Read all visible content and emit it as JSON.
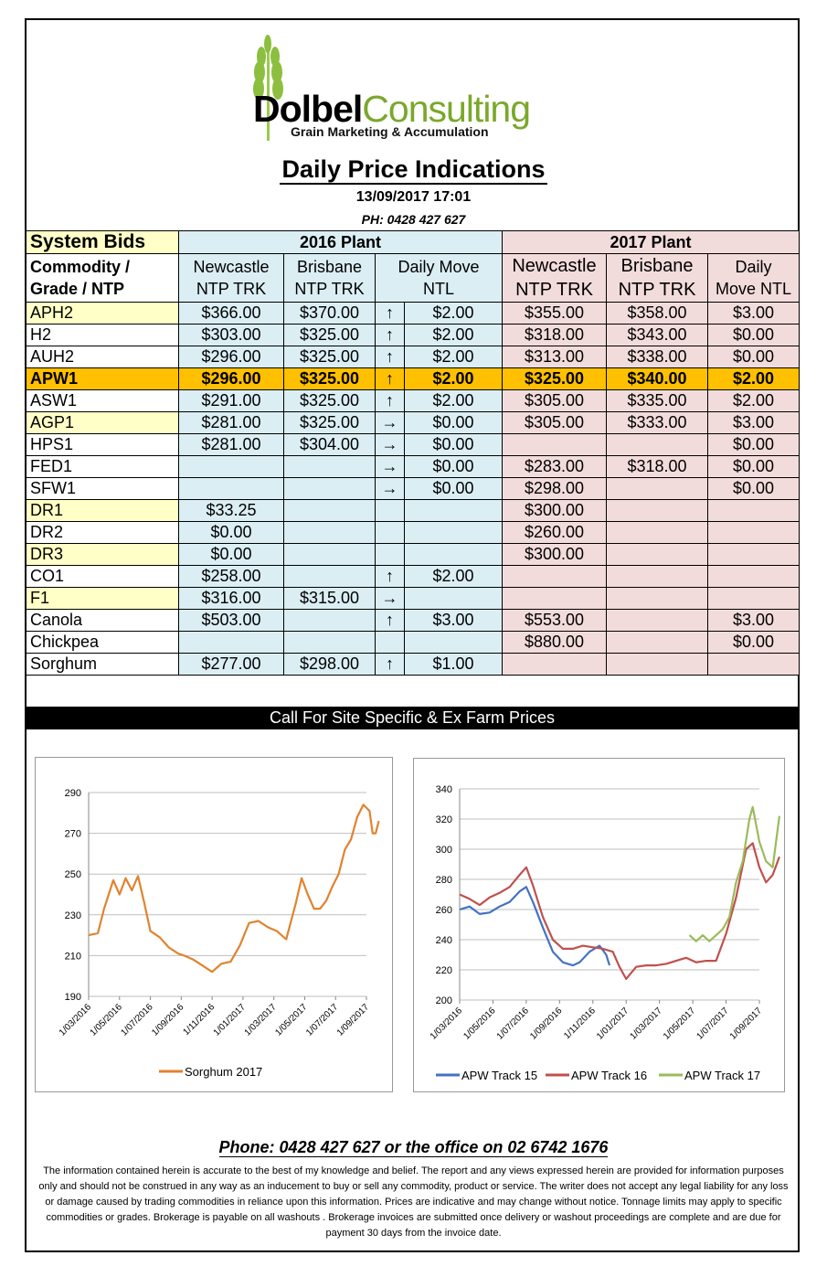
{
  "logo": {
    "brand_bold": "Dolbel",
    "brand_light": "Consulting",
    "tagline": "Grain Marketing & Accumulation"
  },
  "header": {
    "title": "Daily Price Indications",
    "datetime": "13/09/2017 17:01",
    "phone": "PH: 0428 427 627"
  },
  "table": {
    "system_bids": "System Bids",
    "plant_2016": "2016 Plant",
    "plant_2017": "2017 Plant",
    "col_commodity": [
      "Commodity /",
      "Grade / NTP"
    ],
    "col_newcastle_16": [
      "Newcastle",
      "NTP TRK"
    ],
    "col_brisbane_16": [
      "Brisbane",
      "NTP TRK"
    ],
    "col_daily_16": [
      "Daily  Move",
      "NTL"
    ],
    "col_newcastle_17": [
      "Newcastle",
      "NTP TRK"
    ],
    "col_brisbane_17": [
      "Brisbane",
      "NTP TRK"
    ],
    "col_daily_17": [
      "Daily",
      "Move NTL"
    ],
    "rows": [
      {
        "grade": "APH2",
        "hl": true,
        "n16": "$366.00",
        "b16": "$370.00",
        "arr": "↑",
        "d16": "$2.00",
        "n17": "$355.00",
        "b17": "$358.00",
        "d17": "$3.00"
      },
      {
        "grade": "H2",
        "hl": false,
        "n16": "$303.00",
        "b16": "$325.00",
        "arr": "↑",
        "d16": "$2.00",
        "n17": "$318.00",
        "b17": "$343.00",
        "d17": "$0.00"
      },
      {
        "grade": "AUH2",
        "hl": false,
        "n16": "$296.00",
        "b16": "$325.00",
        "arr": "↑",
        "d16": "$2.00",
        "n17": "$313.00",
        "b17": "$338.00",
        "d17": "$0.00"
      },
      {
        "grade": "APW1",
        "hl": false,
        "apw": true,
        "n16": "$296.00",
        "b16": "$325.00",
        "arr": "↑",
        "d16": "$2.00",
        "n17": "$325.00",
        "b17": "$340.00",
        "d17": "$2.00"
      },
      {
        "grade": "ASW1",
        "hl": false,
        "n16": "$291.00",
        "b16": "$325.00",
        "arr": "↑",
        "d16": "$2.00",
        "n17": "$305.00",
        "b17": "$335.00",
        "d17": "$2.00"
      },
      {
        "grade": "AGP1",
        "hl": true,
        "n16": "$281.00",
        "b16": "$325.00",
        "arr": "→",
        "d16": "$0.00",
        "n17": "$305.00",
        "b17": "$333.00",
        "d17": "$3.00"
      },
      {
        "grade": "HPS1",
        "hl": false,
        "n16": "$281.00",
        "b16": "$304.00",
        "arr": "→",
        "d16": "$0.00",
        "n17": "",
        "b17": "",
        "d17": "$0.00"
      },
      {
        "grade": "FED1",
        "hl": false,
        "n16": "",
        "b16": "",
        "arr": "→",
        "d16": "$0.00",
        "n17": "$283.00",
        "b17": "$318.00",
        "d17": "$0.00"
      },
      {
        "grade": "SFW1",
        "hl": false,
        "n16": "",
        "b16": "",
        "arr": "→",
        "d16": "$0.00",
        "n17": "$298.00",
        "b17": "",
        "d17": "$0.00"
      },
      {
        "grade": "DR1",
        "hl": true,
        "n16": "$33.25",
        "b16": "",
        "arr": "",
        "d16": "",
        "n17": "$300.00",
        "b17": "",
        "d17": ""
      },
      {
        "grade": "DR2",
        "hl": false,
        "n16": "$0.00",
        "b16": "",
        "arr": "",
        "d16": "",
        "n17": "$260.00",
        "b17": "",
        "d17": ""
      },
      {
        "grade": "DR3",
        "hl": true,
        "n16": "$0.00",
        "b16": "",
        "arr": "",
        "d16": "",
        "n17": "$300.00",
        "b17": "",
        "d17": ""
      },
      {
        "grade": "CO1",
        "hl": false,
        "n16": "$258.00",
        "b16": "",
        "arr": "↑",
        "d16": "$2.00",
        "n17": "",
        "b17": "",
        "d17": ""
      },
      {
        "grade": "F1",
        "hl": true,
        "n16": "$316.00",
        "b16": "$315.00",
        "arr": "→",
        "d16": "",
        "n17": "",
        "b17": "",
        "d17": ""
      },
      {
        "grade": "Canola",
        "hl": false,
        "n16": "$503.00",
        "b16": "",
        "arr": "↑",
        "d16": "$3.00",
        "n17": "$553.00",
        "b17": "",
        "d17": "$3.00"
      },
      {
        "grade": "Chickpea",
        "hl": false,
        "n16": "",
        "b16": "",
        "arr": "",
        "d16": "",
        "n17": "$880.00",
        "b17": "",
        "d17": "$0.00"
      },
      {
        "grade": "Sorghum",
        "hl": false,
        "n16": "$277.00",
        "b16": "$298.00",
        "arr": "↑",
        "d16": "$1.00",
        "n17": "",
        "b17": "",
        "d17": ""
      }
    ]
  },
  "callbar": "Call For Site Specific & Ex Farm Prices",
  "chart_data": [
    {
      "type": "line",
      "yticks": [
        190,
        210,
        230,
        250,
        270,
        290
      ],
      "ylim": [
        190,
        290
      ],
      "xticks": [
        "1/03/2016",
        "1/05/2016",
        "1/07/2016",
        "1/09/2016",
        "1/11/2016",
        "1/01/2017",
        "1/03/2017",
        "1/05/2017",
        "1/07/2017",
        "1/09/2017"
      ],
      "series": [
        {
          "name": "Sorghum 2017",
          "color": "#e0832f",
          "values": [
            [
              0.0,
              220
            ],
            [
              0.3,
              221
            ],
            [
              0.5,
              233
            ],
            [
              0.8,
              247
            ],
            [
              1.0,
              240
            ],
            [
              1.2,
              248
            ],
            [
              1.4,
              242
            ],
            [
              1.6,
              249
            ],
            [
              1.8,
              236
            ],
            [
              2.0,
              222
            ],
            [
              2.3,
              219
            ],
            [
              2.6,
              214
            ],
            [
              2.9,
              211
            ],
            [
              3.1,
              210
            ],
            [
              3.4,
              208
            ],
            [
              3.7,
              205
            ],
            [
              4.0,
              202
            ],
            [
              4.3,
              206
            ],
            [
              4.6,
              207
            ],
            [
              4.9,
              215
            ],
            [
              5.2,
              226
            ],
            [
              5.5,
              227
            ],
            [
              5.8,
              224
            ],
            [
              6.1,
              222
            ],
            [
              6.4,
              218
            ],
            [
              6.7,
              235
            ],
            [
              6.9,
              248
            ],
            [
              7.1,
              240
            ],
            [
              7.3,
              233
            ],
            [
              7.5,
              233
            ],
            [
              7.7,
              237
            ],
            [
              7.9,
              244
            ],
            [
              8.1,
              250
            ],
            [
              8.3,
              262
            ],
            [
              8.5,
              267
            ],
            [
              8.7,
              278
            ],
            [
              8.9,
              284
            ],
            [
              9.1,
              281
            ],
            [
              9.2,
              270
            ],
            [
              9.3,
              270
            ],
            [
              9.4,
              276
            ]
          ]
        }
      ]
    },
    {
      "type": "line",
      "yticks": [
        200,
        220,
        240,
        260,
        280,
        300,
        320,
        340
      ],
      "ylim": [
        200,
        340
      ],
      "xticks": [
        "1/03/2016",
        "1/05/2016",
        "1/07/2016",
        "1/09/2016",
        "1/11/2016",
        "1/01/2017",
        "1/03/2017",
        "1/05/2017",
        "1/07/2017",
        "1/09/2017"
      ],
      "series": [
        {
          "name": "APW Track 15",
          "color": "#4472c4",
          "values": [
            [
              0.0,
              260
            ],
            [
              0.3,
              262
            ],
            [
              0.6,
              257
            ],
            [
              0.9,
              258
            ],
            [
              1.2,
              262
            ],
            [
              1.5,
              265
            ],
            [
              1.8,
              272
            ],
            [
              2.0,
              275
            ],
            [
              2.2,
              265
            ],
            [
              2.5,
              248
            ],
            [
              2.8,
              232
            ],
            [
              3.1,
              225
            ],
            [
              3.4,
              223
            ],
            [
              3.6,
              225
            ],
            [
              3.9,
              232
            ],
            [
              4.2,
              236
            ],
            [
              4.4,
              230
            ],
            [
              4.5,
              223
            ]
          ]
        },
        {
          "name": "APW Track 16",
          "color": "#c0504d",
          "values": [
            [
              0.0,
              270
            ],
            [
              0.3,
              267
            ],
            [
              0.6,
              263
            ],
            [
              0.9,
              268
            ],
            [
              1.2,
              271
            ],
            [
              1.5,
              275
            ],
            [
              1.8,
              283
            ],
            [
              2.0,
              288
            ],
            [
              2.2,
              276
            ],
            [
              2.5,
              255
            ],
            [
              2.8,
              240
            ],
            [
              3.1,
              234
            ],
            [
              3.4,
              234
            ],
            [
              3.7,
              236
            ],
            [
              4.0,
              235
            ],
            [
              4.3,
              234
            ],
            [
              4.6,
              232
            ],
            [
              4.8,
              222
            ],
            [
              5.0,
              214
            ],
            [
              5.3,
              222
            ],
            [
              5.6,
              223
            ],
            [
              5.9,
              223
            ],
            [
              6.2,
              224
            ],
            [
              6.5,
              226
            ],
            [
              6.8,
              228
            ],
            [
              7.1,
              225
            ],
            [
              7.4,
              226
            ],
            [
              7.7,
              226
            ],
            [
              8.0,
              244
            ],
            [
              8.3,
              268
            ],
            [
              8.6,
              300
            ],
            [
              8.8,
              304
            ],
            [
              9.0,
              288
            ],
            [
              9.2,
              278
            ],
            [
              9.4,
              283
            ],
            [
              9.6,
              295
            ]
          ]
        },
        {
          "name": "APW Track 17",
          "color": "#9bbb59",
          "values": [
            [
              6.9,
              243
            ],
            [
              7.1,
              239
            ],
            [
              7.3,
              243
            ],
            [
              7.5,
              239
            ],
            [
              7.7,
              243
            ],
            [
              7.9,
              247
            ],
            [
              8.1,
              255
            ],
            [
              8.3,
              278
            ],
            [
              8.5,
              292
            ],
            [
              8.7,
              320
            ],
            [
              8.8,
              328
            ],
            [
              9.0,
              305
            ],
            [
              9.2,
              292
            ],
            [
              9.4,
              288
            ],
            [
              9.6,
              322
            ]
          ]
        }
      ]
    }
  ],
  "footer": {
    "phone": "Phone: 0428 427 627 or the office on 02 6742 1676",
    "disclaimer": "The information contained herein is accurate to the best of my knowledge and belief.  The report and any views expressed herein are provided for information purposes only and should not be construed in any way as an inducement to buy or sell any commodity, product or service. The writer does not accept any legal liability for any loss or damage caused by trading commodities in reliance upon this information. Prices are indicative and may change without notice. Tonnage limits may apply to specific commodities or grades.  Brokerage is payable on all washouts . Brokerage invoices are submitted once delivery or washout proceedings are complete and are due for payment 30 days from the invoice date."
  }
}
